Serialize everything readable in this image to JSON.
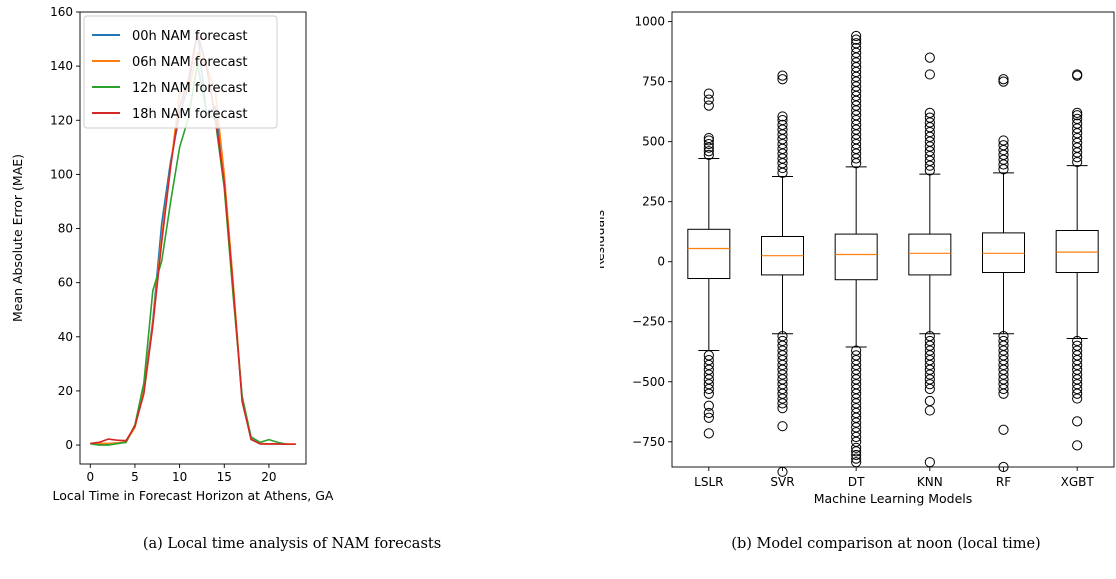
{
  "chart_data": [
    {
      "type": "line",
      "xlabel": "Local Time in Forecast Horizon at Athens, GA",
      "ylabel": "Mean Absolute Error (MAE)",
      "xlim": [
        -1.15,
        24.15
      ],
      "ylim": [
        -7,
        160
      ],
      "xticks": [
        0,
        5,
        10,
        15,
        20
      ],
      "yticks": [
        0,
        20,
        40,
        60,
        80,
        100,
        120,
        140,
        160
      ],
      "legend": "top-left",
      "caption": "(a) Local time analysis of NAM forecasts",
      "x": [
        0,
        1,
        2,
        3,
        4,
        5,
        6,
        7,
        8,
        9,
        10,
        11,
        12,
        13,
        14,
        15,
        16,
        17,
        18,
        19,
        20,
        21,
        22,
        23
      ],
      "series": [
        {
          "name": "00h NAM forecast",
          "color": "#1f77b4",
          "values": [
            0.5,
            0.5,
            0.5,
            0.8,
            1.0,
            7.0,
            21.0,
            46.0,
            82.0,
            105.0,
            122.0,
            133.0,
            153.0,
            122.0,
            125.0,
            98.0,
            58.0,
            17.0,
            2.0,
            0.5,
            0.4,
            0.4,
            0.3,
            0.3
          ]
        },
        {
          "name": "06h NAM forecast",
          "color": "#ff7f0e",
          "values": [
            0.6,
            0.6,
            0.6,
            0.8,
            1.2,
            6.5,
            20.0,
            45.0,
            77.0,
            103.0,
            130.0,
            131.0,
            145.0,
            140.0,
            131.0,
            100.0,
            60.0,
            17.0,
            2.2,
            0.6,
            0.4,
            0.4,
            0.4,
            0.4
          ]
        },
        {
          "name": "12h NAM forecast",
          "color": "#2ca02c",
          "values": [
            0.5,
            0.0,
            0.0,
            0.5,
            1.0,
            7.5,
            23.0,
            57.0,
            68.0,
            90.0,
            110.0,
            121.0,
            141.0,
            123.0,
            120.0,
            95.0,
            55.0,
            18.0,
            3.0,
            1.0,
            2.0,
            1.0,
            0.3,
            0.3
          ]
        },
        {
          "name": "18h NAM forecast",
          "color": "#d62728",
          "values": [
            0.6,
            1.0,
            2.2,
            1.8,
            1.6,
            7.0,
            19.0,
            44.0,
            75.0,
            103.0,
            125.0,
            135.0,
            152.0,
            140.0,
            121.0,
            97.0,
            58.0,
            16.0,
            2.2,
            0.4,
            0.4,
            0.4,
            0.3,
            0.3
          ]
        }
      ]
    },
    {
      "type": "box",
      "xlabel": "Machine Learning Models",
      "ylabel": "Residuals",
      "ylim": [
        -855,
        1040
      ],
      "yticks": [
        -750,
        -500,
        -250,
        0,
        250,
        500,
        750,
        1000
      ],
      "ytick_labels": [
        "−750",
        "−500",
        "−250",
        "0",
        "250",
        "500",
        "750",
        "1000"
      ],
      "caption": "(b) Model comparison at noon (local time)",
      "median_color": "#ff7f0e",
      "categories": [
        "LSLR",
        "SVR",
        "DT",
        "KNN",
        "RF",
        "XGBT"
      ],
      "boxes": [
        {
          "q1": -70,
          "median": 55,
          "q3": 135,
          "whisker_low": -370,
          "whisker_high": 430,
          "fliers_low": [
            -390,
            -410,
            -430,
            -450,
            -470,
            -490,
            -510,
            -530,
            -550,
            -600,
            -630,
            -650,
            -715
          ],
          "fliers_high": [
            445,
            460,
            475,
            490,
            505,
            515,
            650,
            675,
            700
          ]
        },
        {
          "q1": -55,
          "median": 25,
          "q3": 105,
          "whisker_low": -300,
          "whisker_high": 355,
          "fliers_low": [
            -310,
            -330,
            -350,
            -370,
            -390,
            -410,
            -430,
            -450,
            -470,
            -490,
            -510,
            -530,
            -550,
            -570,
            -590,
            -610,
            -685,
            -875
          ],
          "fliers_high": [
            370,
            390,
            410,
            430,
            450,
            470,
            490,
            510,
            530,
            550,
            570,
            590,
            605,
            760,
            775
          ]
        },
        {
          "q1": -75,
          "median": 30,
          "q3": 115,
          "whisker_low": -355,
          "whisker_high": 395,
          "fliers_low": [
            -370,
            -390,
            -410,
            -430,
            -450,
            -470,
            -490,
            -510,
            -530,
            -550,
            -570,
            -590,
            -610,
            -630,
            -650,
            -670,
            -690,
            -710,
            -730,
            -750,
            -775,
            -790,
            -805,
            -820,
            -835
          ],
          "fliers_high": [
            410,
            430,
            450,
            470,
            490,
            510,
            530,
            550,
            570,
            590,
            610,
            630,
            650,
            670,
            690,
            710,
            730,
            750,
            770,
            790,
            810,
            830,
            850,
            870,
            890,
            910,
            925,
            940
          ]
        },
        {
          "q1": -55,
          "median": 35,
          "q3": 115,
          "whisker_low": -300,
          "whisker_high": 365,
          "fliers_low": [
            -310,
            -330,
            -350,
            -370,
            -390,
            -410,
            -430,
            -450,
            -470,
            -490,
            -510,
            -530,
            -580,
            -620,
            -835
          ],
          "fliers_high": [
            380,
            400,
            420,
            440,
            460,
            480,
            500,
            520,
            540,
            560,
            580,
            600,
            620,
            780,
            850
          ]
        },
        {
          "q1": -45,
          "median": 35,
          "q3": 120,
          "whisker_low": -300,
          "whisker_high": 370,
          "fliers_low": [
            -310,
            -330,
            -350,
            -370,
            -390,
            -410,
            -430,
            -450,
            -470,
            -490,
            -510,
            -530,
            -550,
            -700,
            -855
          ],
          "fliers_high": [
            385,
            405,
            425,
            445,
            465,
            485,
            505,
            750,
            760
          ]
        },
        {
          "q1": -45,
          "median": 40,
          "q3": 130,
          "whisker_low": -320,
          "whisker_high": 400,
          "fliers_low": [
            -330,
            -350,
            -370,
            -390,
            -410,
            -430,
            -450,
            -470,
            -490,
            -510,
            -530,
            -550,
            -570,
            -665,
            -765
          ],
          "fliers_high": [
            415,
            435,
            455,
            475,
            495,
            515,
            535,
            555,
            575,
            595,
            610,
            620,
            775,
            780
          ]
        }
      ]
    }
  ]
}
